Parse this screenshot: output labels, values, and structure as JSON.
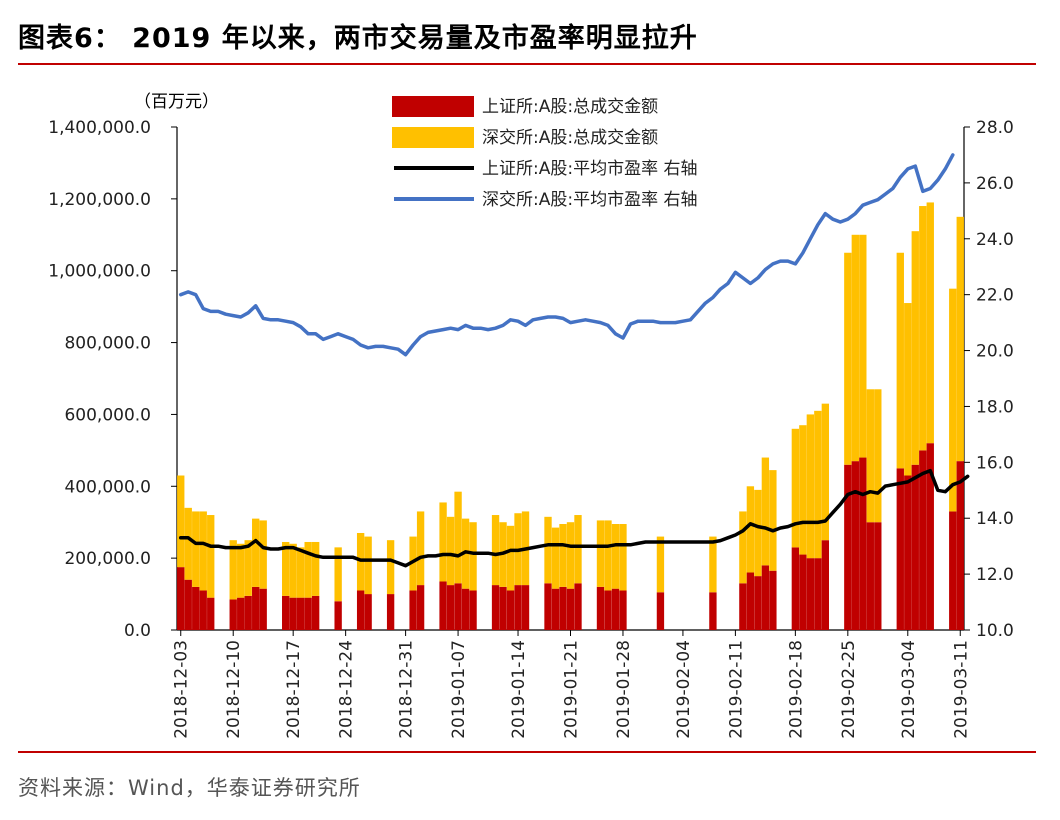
{
  "header": {
    "title": "图表6： 2019 年以来，两市交易量及市盈率明显拉升"
  },
  "footer": {
    "source": "资料来源：Wind，华泰证券研究所"
  },
  "colors": {
    "sh_volume": "#c00000",
    "sz_volume": "#ffc000",
    "sh_pe": "#000000",
    "sz_pe": "#4472c4",
    "accent": "#c00000"
  },
  "chart_data": {
    "type": "bar+line",
    "title": "2019 年以来，两市交易量及市盈率明显拉升",
    "unit_label": "（百万元）",
    "left_axis": {
      "min": 0,
      "max": 1400000,
      "ticks": [
        "0.0",
        "200,000.0",
        "400,000.0",
        "600,000.0",
        "800,000.0",
        "1,000,000.0",
        "1,200,000.0",
        "1,400,000.0"
      ]
    },
    "right_axis": {
      "min": 10.0,
      "max": 28.0,
      "ticks": [
        "10.0",
        "12.0",
        "14.0",
        "16.0",
        "18.0",
        "20.0",
        "22.0",
        "24.0",
        "26.0",
        "28.0"
      ]
    },
    "x_tick_labels": [
      "2018-12-03",
      "2018-12-10",
      "2018-12-17",
      "2018-12-24",
      "2018-12-31",
      "2019-01-07",
      "2019-01-14",
      "2019-01-21",
      "2019-01-28",
      "2019-02-04",
      "2019-02-11",
      "2019-02-18",
      "2019-02-25",
      "2019-03-04",
      "2019-03-11"
    ],
    "legend": [
      "上证所:A股:总成交金额",
      "深交所:A股:总成交金额",
      "上证所:A股:平均市盈率 右轴",
      "深交所:A股:平均市盈率 右轴"
    ],
    "legend_position": "top-left",
    "series": [
      {
        "name": "上证所:A股:总成交金额",
        "type": "stacked-bar",
        "axis": "left",
        "values": [
          175000,
          140000,
          120000,
          110000,
          90000,
          null,
          null,
          85000,
          90000,
          95000,
          120000,
          115000,
          null,
          null,
          95000,
          90000,
          90000,
          90000,
          95000,
          null,
          null,
          80000,
          null,
          null,
          110000,
          100000,
          null,
          null,
          100000,
          null,
          null,
          110000,
          125000,
          null,
          null,
          135000,
          125000,
          130000,
          115000,
          110000,
          null,
          null,
          125000,
          120000,
          110000,
          125000,
          125000,
          null,
          null,
          130000,
          115000,
          120000,
          115000,
          130000,
          null,
          null,
          120000,
          110000,
          115000,
          110000,
          null,
          null,
          null,
          null,
          105000,
          null,
          null,
          null,
          null,
          null,
          null,
          105000,
          null,
          null,
          null,
          130000,
          160000,
          150000,
          180000,
          165000,
          null,
          null,
          230000,
          210000,
          200000,
          200000,
          250000,
          null,
          null,
          460000,
          470000,
          480000,
          300000,
          300000,
          null,
          null,
          450000,
          430000,
          460000,
          500000,
          520000,
          null,
          null,
          330000,
          470000
        ]
      },
      {
        "name": "深交所:A股:总成交金额",
        "type": "stacked-bar",
        "axis": "left",
        "values": [
          255000,
          200000,
          210000,
          220000,
          230000,
          null,
          null,
          165000,
          150000,
          155000,
          190000,
          190000,
          null,
          null,
          150000,
          150000,
          140000,
          155000,
          150000,
          null,
          null,
          150000,
          null,
          null,
          160000,
          160000,
          null,
          null,
          150000,
          null,
          null,
          150000,
          205000,
          null,
          null,
          220000,
          190000,
          255000,
          195000,
          190000,
          null,
          null,
          195000,
          180000,
          180000,
          200000,
          205000,
          null,
          null,
          185000,
          170000,
          175000,
          185000,
          190000,
          null,
          null,
          185000,
          195000,
          180000,
          185000,
          null,
          null,
          null,
          null,
          155000,
          null,
          null,
          null,
          null,
          null,
          null,
          155000,
          null,
          null,
          null,
          200000,
          240000,
          240000,
          300000,
          280000,
          null,
          null,
          330000,
          360000,
          400000,
          410000,
          380000,
          null,
          null,
          590000,
          630000,
          620000,
          370000,
          370000,
          null,
          null,
          600000,
          480000,
          650000,
          680000,
          670000,
          null,
          null,
          620000,
          680000
        ]
      },
      {
        "name": "上证所:A股:平均市盈率 右轴",
        "type": "line",
        "axis": "right",
        "values": [
          13.3,
          13.3,
          13.1,
          13.1,
          13.0,
          13.0,
          12.95,
          12.95,
          12.95,
          13.0,
          13.2,
          12.95,
          12.9,
          12.9,
          12.95,
          12.95,
          12.85,
          12.75,
          12.65,
          12.6,
          12.6,
          12.6,
          12.6,
          12.6,
          12.5,
          12.5,
          12.5,
          12.5,
          12.5,
          12.4,
          12.3,
          12.45,
          12.6,
          12.65,
          12.65,
          12.7,
          12.7,
          12.65,
          12.8,
          12.75,
          12.75,
          12.75,
          12.7,
          12.75,
          12.85,
          12.85,
          12.9,
          12.95,
          13.0,
          13.05,
          13.05,
          13.05,
          13.0,
          13.0,
          13.0,
          13.0,
          13.0,
          13.0,
          13.05,
          13.05,
          13.05,
          13.1,
          13.15,
          13.15,
          13.15,
          13.15,
          13.15,
          13.15,
          13.15,
          13.15,
          13.15,
          13.15,
          13.2,
          13.3,
          13.4,
          13.55,
          13.8,
          13.7,
          13.65,
          13.55,
          13.65,
          13.7,
          13.8,
          13.85,
          13.85,
          13.85,
          13.9,
          14.2,
          14.5,
          14.85,
          14.95,
          14.85,
          14.95,
          14.9,
          15.15,
          15.2,
          15.25,
          15.3,
          15.45,
          15.6,
          15.7,
          15.0,
          14.95,
          15.2,
          15.3,
          15.5
        ]
      },
      {
        "name": "深交所:A股:平均市盈率 右轴",
        "type": "line",
        "axis": "right",
        "values": [
          22.0,
          22.1,
          22.0,
          21.5,
          21.4,
          21.4,
          21.3,
          21.25,
          21.2,
          21.35,
          21.6,
          21.15,
          21.1,
          21.1,
          21.05,
          21.0,
          20.85,
          20.6,
          20.6,
          20.4,
          20.5,
          20.6,
          20.5,
          20.4,
          20.2,
          20.1,
          20.15,
          20.15,
          20.1,
          20.05,
          19.85,
          20.2,
          20.5,
          20.65,
          20.7,
          20.75,
          20.8,
          20.75,
          20.9,
          20.8,
          20.8,
          20.75,
          20.8,
          20.9,
          21.1,
          21.05,
          20.9,
          21.1,
          21.15,
          21.2,
          21.2,
          21.15,
          21.0,
          21.05,
          21.1,
          21.05,
          21.0,
          20.9,
          20.6,
          20.45,
          20.95,
          21.05,
          21.05,
          21.05,
          21.0,
          21.0,
          21.0,
          21.05,
          21.1,
          21.4,
          21.7,
          21.9,
          22.2,
          22.4,
          22.8,
          22.6,
          22.4,
          22.6,
          22.9,
          23.1,
          23.2,
          23.2,
          23.1,
          23.5,
          24.0,
          24.5,
          24.9,
          24.7,
          24.6,
          24.7,
          24.9,
          25.2,
          25.3,
          25.4,
          25.6,
          25.8,
          26.2,
          26.5,
          26.6,
          25.7,
          25.8,
          26.1,
          26.5,
          27.0
        ]
      }
    ]
  }
}
